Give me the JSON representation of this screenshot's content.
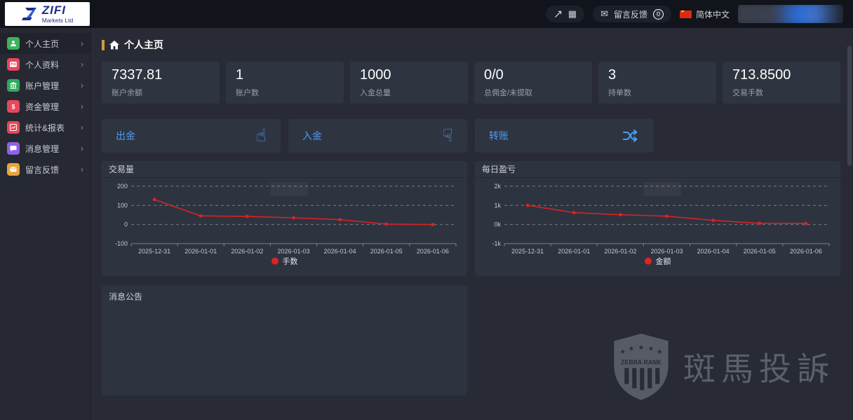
{
  "brand": {
    "name": "ZIFI",
    "subtitle": "Markets Ltd"
  },
  "header": {
    "feedback_label": "留言反馈",
    "feedback_badge": "0",
    "language_label": "简体中文"
  },
  "sidebar": {
    "items": [
      {
        "label": "个人主页",
        "icon": "user-icon",
        "color": "#3eb25a",
        "active": true
      },
      {
        "label": "个人资料",
        "icon": "id-card-icon",
        "color": "#e8465a",
        "active": false
      },
      {
        "label": "账户管理",
        "icon": "bank-icon",
        "color": "#2fa95c",
        "active": false
      },
      {
        "label": "资金管理",
        "icon": "dollar-icon",
        "color": "#e8465a",
        "active": false
      },
      {
        "label": "统计&报表",
        "icon": "chart-icon",
        "color": "#e8465a",
        "active": false
      },
      {
        "label": "消息管理",
        "icon": "chat-icon",
        "color": "#8f5fe8",
        "active": false
      },
      {
        "label": "留言反馈",
        "icon": "mail-icon",
        "color": "#e8a33d",
        "active": false
      }
    ]
  },
  "page": {
    "title": "个人主页"
  },
  "stats": [
    {
      "value": "7337.81",
      "label": "账户余额"
    },
    {
      "value": "1",
      "label": "账户数"
    },
    {
      "value": "1000",
      "label": "入金总量"
    },
    {
      "value": "0/0",
      "label": "总佣金/未提取"
    },
    {
      "value": "3",
      "label": "持单数"
    },
    {
      "value": "713.8500",
      "label": "交易手数"
    }
  ],
  "actions": [
    {
      "label": "出金",
      "icon": "hand-point-up-icon"
    },
    {
      "label": "入金",
      "icon": "hand-point-down-icon"
    },
    {
      "label": "转账",
      "icon": "shuffle-icon"
    }
  ],
  "chart_data": [
    {
      "type": "line",
      "title": "交易量",
      "legend": "手数",
      "categories": [
        "2025-12-31",
        "2026-01-01",
        "2026-01-02",
        "2026-01-03",
        "2026-01-04",
        "2026-01-05",
        "2026-01-06"
      ],
      "values": [
        130,
        45,
        42,
        35,
        25,
        2,
        0
      ],
      "ylim": [
        -100,
        200
      ],
      "yticks": [
        {
          "value": 200,
          "label": "200"
        },
        {
          "value": 100,
          "label": "100"
        },
        {
          "value": 0,
          "label": "0"
        },
        {
          "value": -100,
          "label": "-100"
        }
      ],
      "line_color": "#e02222",
      "grid": "dashed",
      "legend_position": "bottom"
    },
    {
      "type": "line",
      "title": "每日盈亏",
      "legend": "金额",
      "categories": [
        "2025-12-31",
        "2026-01-01",
        "2026-01-02",
        "2026-01-03",
        "2026-01-04",
        "2026-01-05",
        "2026-01-06"
      ],
      "values": [
        1000,
        620,
        510,
        430,
        220,
        60,
        50
      ],
      "ylim": [
        -1000,
        2000
      ],
      "yticks": [
        {
          "value": 2000,
          "label": "2k"
        },
        {
          "value": 1000,
          "label": "1k"
        },
        {
          "value": 0,
          "label": "0k"
        },
        {
          "value": -1000,
          "label": "-1k"
        }
      ],
      "line_color": "#e02222",
      "grid": "dashed",
      "legend_position": "bottom"
    }
  ],
  "panels": {
    "announcements_title": "消息公告"
  },
  "watermark": {
    "badge_text": "ZEBRA RANK",
    "label": "斑馬投訴"
  },
  "colors": {
    "accent_blue": "#4a9ff0",
    "chart_red": "#e02222",
    "title_accent": "#d79b3c"
  }
}
